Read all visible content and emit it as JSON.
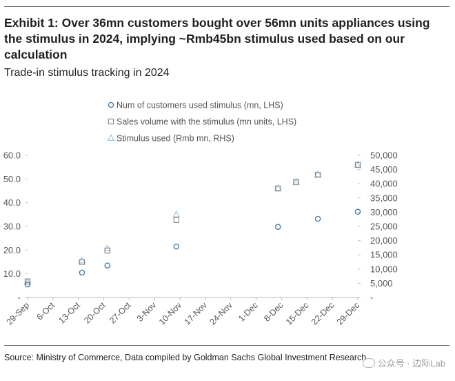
{
  "header": {
    "title": "Exhibit 1: Over 36mn customers bought over 56mn units appliances using the stimulus in 2024, implying ~Rmb45bn stimulus used based on our calculation",
    "subtitle": "Trade-in stimulus tracking in 2024"
  },
  "footer": {
    "source": "Source: Ministry of Commerce, Data compiled by Goldman Sachs Global Investment Research",
    "watermark": "公众号 · 边际Lab"
  },
  "colors": {
    "customers": "#4a7ea8",
    "volume": "#8c8c8c",
    "stimulus": "#9fc4e0",
    "axis_text": "#555555",
    "grid": "#dddddd"
  },
  "chart_data": {
    "type": "scatter",
    "title": "Trade-in stimulus tracking in 2024",
    "x_tick_labels": [
      "29-Sep",
      "6-Oct",
      "13-Oct",
      "20-Oct",
      "27-Oct",
      "3-Nov",
      "10-Nov",
      "17-Nov",
      "24-Nov",
      "1-Dec",
      "8-Dec",
      "15-Dec",
      "22-Dec",
      "29-Dec"
    ],
    "xlim": [
      0,
      91
    ],
    "left_axis": {
      "ylim": [
        0,
        60
      ],
      "ticks": [
        0,
        10,
        20,
        30,
        40,
        50,
        60
      ],
      "tick_labels": [
        "-",
        "10.0",
        "20.0",
        "30.0",
        "40.0",
        "50.0",
        "60.0"
      ]
    },
    "right_axis": {
      "ylim": [
        0,
        50000
      ],
      "ticks": [
        0,
        5000,
        10000,
        15000,
        20000,
        25000,
        30000,
        35000,
        40000,
        45000,
        50000
      ],
      "tick_labels": [
        "-",
        "5,000",
        "10,000",
        "15,000",
        "20,000",
        "25,000",
        "30,000",
        "35,000",
        "40,000",
        "45,000",
        "50,000"
      ]
    },
    "legend_position": "top-center",
    "series": [
      {
        "name": "Num of customers used stimulus (mn, LHS)",
        "marker": "circle",
        "axis": "left",
        "x": [
          0,
          15,
          22,
          41,
          69,
          80,
          91
        ],
        "values": [
          5.5,
          10.5,
          13.5,
          21.5,
          29.8,
          33.2,
          36.2
        ]
      },
      {
        "name": "Sales volume with the stimulus (mn units, LHS)",
        "marker": "square",
        "axis": "left",
        "x": [
          0,
          15,
          22,
          41,
          69,
          74,
          80,
          91
        ],
        "values": [
          6.8,
          15.0,
          19.8,
          32.7,
          46.0,
          48.8,
          51.8,
          56.0
        ]
      },
      {
        "name": "Stimulus used (Rmb mn, RHS)",
        "marker": "triangle",
        "axis": "right",
        "x": [
          0,
          15,
          22,
          41,
          69,
          74,
          80,
          91
        ],
        "values": [
          5500,
          13000,
          17300,
          29200,
          38500,
          40500,
          43300,
          46500
        ]
      }
    ]
  }
}
